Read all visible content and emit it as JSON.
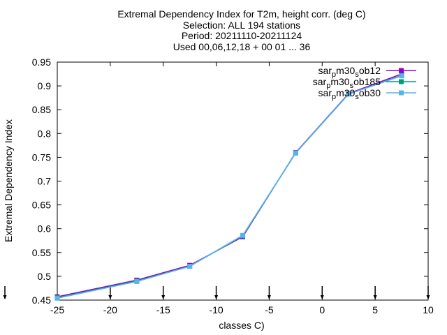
{
  "chart_data": {
    "type": "line",
    "title_lines": [
      "Extremal Dependency Index  for T2m, height corr. (deg C)",
      "Selection: ALL     194 stations",
      "Period: 20211110-20211124",
      "Used 00,06,12,18 + 00 01 ... 36"
    ],
    "xlabel": "classes C)",
    "ylabel": "Extremal Dependency Index",
    "xlim": [
      -25,
      10
    ],
    "ylim": [
      0.45,
      0.95
    ],
    "xticks": [
      -25,
      -20,
      -15,
      -10,
      -5,
      0,
      5,
      10
    ],
    "yticks": [
      0.45,
      0.5,
      0.55,
      0.6,
      0.65,
      0.7,
      0.75,
      0.8,
      0.85,
      0.9,
      0.95
    ],
    "xtick_labels": [
      "-25",
      "-20",
      "-15",
      "-10",
      "-5",
      "0",
      "5",
      "10"
    ],
    "ytick_labels": [
      "0.45",
      "0.5",
      "0.55",
      "0.6",
      "0.65",
      "0.7",
      "0.75",
      "0.8",
      "0.85",
      "0.9",
      "0.95"
    ],
    "legend_position": "top-right",
    "grid": false,
    "class_markers_x": [
      -25,
      -20,
      -15,
      -10,
      -5,
      0,
      5,
      10
    ],
    "series": [
      {
        "name": "sar_pm30_sob12",
        "legend_parts": [
          "sar",
          "p",
          "m30",
          "s",
          "ob12"
        ],
        "color": "#9400d3",
        "marker": "square",
        "x": [
          -25,
          -17.5,
          -12.5,
          -7.5,
          -2.5,
          2.5,
          7.5
        ],
        "y": [
          0.457,
          0.492,
          0.523,
          0.583,
          0.76,
          0.884,
          0.925
        ]
      },
      {
        "name": "sar_pm30_sob185",
        "legend_parts": [
          "sar",
          "p",
          "m30",
          "s",
          "ob185"
        ],
        "color": "#009e73",
        "marker": "square",
        "x": [
          -25,
          -17.5,
          -12.5,
          -7.5,
          -2.5,
          2.5,
          7.5
        ],
        "y": [
          0.455,
          0.49,
          0.521,
          0.585,
          0.759,
          0.883,
          0.922
        ]
      },
      {
        "name": "sar_pm30_sob30",
        "legend_parts": [
          "sar",
          "p",
          "m30",
          "s",
          "ob30"
        ],
        "color": "#56b4e9",
        "marker": "square",
        "x": [
          -25,
          -17.5,
          -12.5,
          -7.5,
          -2.5,
          2.5,
          7.5
        ],
        "y": [
          0.454,
          0.489,
          0.521,
          0.586,
          0.759,
          0.883,
          0.921
        ]
      }
    ]
  }
}
